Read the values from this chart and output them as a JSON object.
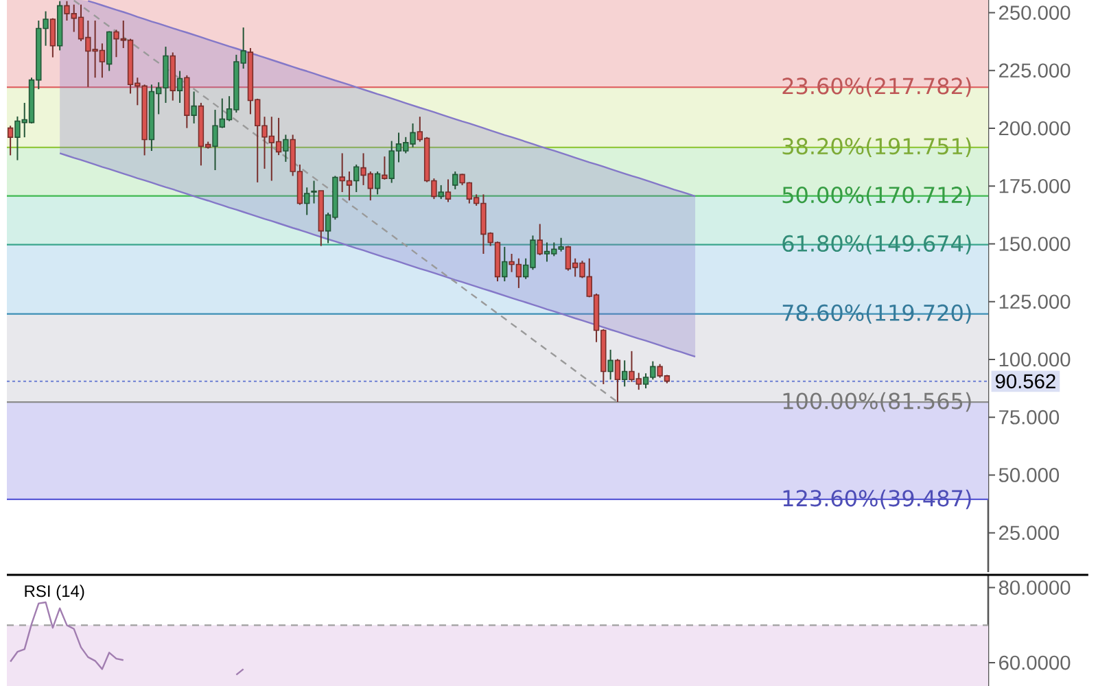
{
  "chart_data": [
    {
      "type": "candlestick",
      "categories": [
        null,
        null,
        null,
        null,
        null,
        null,
        null,
        null,
        null,
        null,
        null,
        null,
        null,
        null,
        null,
        null,
        null,
        null,
        null,
        null,
        null,
        null,
        null,
        null,
        null,
        null,
        null,
        null,
        null,
        null,
        null,
        null,
        null,
        null,
        null,
        null,
        null,
        null,
        null,
        null,
        null,
        null,
        null,
        null,
        null,
        null,
        null,
        null,
        null,
        null,
        null,
        null,
        null,
        null,
        null,
        null,
        null,
        null,
        null,
        null,
        null,
        null,
        null,
        null,
        null,
        null,
        null,
        null,
        null,
        null,
        null,
        null,
        null,
        null,
        null,
        null,
        null,
        null,
        null,
        null,
        null,
        null,
        null,
        null,
        null,
        null,
        null,
        null,
        null,
        null,
        null,
        null,
        null,
        null,
        null,
        null,
        null,
        null,
        null,
        null,
        null,
        null,
        null,
        null,
        null,
        null,
        null,
        null,
        null,
        null,
        null,
        null,
        null,
        null,
        null,
        null,
        null,
        null,
        null,
        null,
        null,
        null,
        null,
        null,
        null,
        null,
        null,
        null,
        null,
        null,
        null,
        null,
        null,
        null,
        null,
        null,
        null,
        null,
        null
      ],
      "ohlc": [
        [
          200.1,
          201.1,
          188.3,
          196.1
        ],
        [
          196.1,
          205.1,
          186.2,
          203.1
        ],
        [
          202.5,
          211.0,
          196.1,
          203.7
        ],
        [
          202.5,
          221.9,
          202.1,
          220.9
        ],
        [
          220.9,
          246.6,
          216.9,
          243.2
        ],
        [
          243.2,
          250.6,
          235.7,
          247.2
        ],
        [
          247.2,
          247.6,
          230.7,
          235.7
        ],
        [
          235.7,
          255.0,
          233.7,
          253.0
        ],
        [
          253.0,
          255.0,
          246.6,
          249.6
        ],
        [
          249.6,
          253.5,
          241.7,
          247.6
        ],
        [
          248.0,
          253.5,
          237.7,
          238.7
        ],
        [
          239.3,
          246.6,
          217.9,
          233.4
        ],
        [
          234.1,
          246.6,
          221.9,
          233.4
        ],
        [
          233.7,
          236.7,
          221.9,
          228.8
        ],
        [
          227.8,
          242.0,
          224.8,
          241.7
        ],
        [
          241.7,
          242.6,
          230.8,
          238.7
        ],
        [
          238.7,
          246.6,
          234.7,
          238.1
        ],
        [
          238.1,
          238.7,
          215.0,
          218.9
        ],
        [
          219.5,
          221.9,
          210.0,
          218.3
        ],
        [
          218.3,
          218.9,
          188.3,
          195.1
        ],
        [
          195.1,
          218.9,
          190.2,
          215.9
        ],
        [
          215.0,
          219.9,
          206.1,
          217.5
        ],
        [
          217.5,
          235.3,
          211.0,
          231.3
        ],
        [
          231.3,
          232.8,
          212.0,
          216.3
        ],
        [
          216.3,
          224.8,
          211.0,
          221.5
        ],
        [
          221.9,
          222.9,
          200.1,
          205.6
        ],
        [
          205.6,
          215.9,
          202.1,
          209.6
        ],
        [
          209.6,
          211.0,
          183.9,
          192.2
        ],
        [
          193.0,
          194.2,
          191.2,
          191.8
        ],
        [
          192.2,
          208.0,
          181.9,
          201.1
        ],
        [
          200.5,
          212.9,
          200.1,
          204.0
        ],
        [
          203.7,
          213.9,
          203.1,
          208.4
        ],
        [
          208.0,
          231.8,
          206.8,
          228.8
        ],
        [
          228.2,
          243.6,
          225.8,
          233.5
        ],
        [
          232.9,
          234.7,
          206.1,
          212.0
        ],
        [
          212.4,
          212.8,
          176.6,
          201.1
        ],
        [
          201.1,
          205.0,
          182.5,
          196.2
        ],
        [
          196.6,
          205.0,
          177.3,
          193.8
        ],
        [
          194.2,
          204.5,
          188.4,
          189.8
        ],
        [
          190.2,
          197.2,
          185.5,
          195.1
        ],
        [
          195.1,
          197.2,
          179.4,
          181.3
        ],
        [
          181.3,
          184.3,
          166.9,
          167.5
        ],
        [
          167.5,
          174.4,
          162.5,
          171.8
        ],
        [
          172.4,
          177.3,
          167.5,
          172.8
        ],
        [
          173.0,
          173.0,
          149.1,
          155.6
        ],
        [
          155.6,
          163.5,
          150.3,
          162.5
        ],
        [
          161.5,
          179.4,
          160.5,
          178.8
        ],
        [
          178.9,
          189.2,
          172.4,
          177.3
        ],
        [
          177.3,
          181.3,
          168.8,
          175.4
        ],
        [
          177.3,
          184.3,
          172.4,
          183.3
        ],
        [
          182.9,
          189.2,
          175.4,
          179.7
        ],
        [
          180.3,
          181.3,
          168.8,
          174.0
        ],
        [
          174.0,
          181.3,
          171.4,
          180.3
        ],
        [
          179.7,
          187.8,
          177.8,
          178.3
        ],
        [
          178.3,
          194.5,
          176.4,
          190.2
        ],
        [
          190.2,
          198.1,
          185.3,
          193.2
        ],
        [
          190.2,
          196.2,
          189.2,
          193.8
        ],
        [
          193.2,
          202.1,
          191.8,
          198.1
        ],
        [
          198.5,
          205.0,
          194.2,
          195.1
        ],
        [
          195.7,
          196.2,
          176.7,
          177.3
        ],
        [
          177.3,
          178.3,
          169.4,
          170.5
        ],
        [
          170.5,
          175.4,
          169.4,
          172.4
        ],
        [
          172.4,
          177.9,
          168.1,
          169.4
        ],
        [
          175.4,
          181.3,
          173.6,
          180.0
        ],
        [
          180.0,
          180.3,
          175.4,
          176.4
        ],
        [
          176.4,
          176.7,
          167.5,
          169.4
        ],
        [
          170.0,
          171.4,
          166.5,
          167.5
        ],
        [
          167.5,
          171.4,
          145.7,
          154.2
        ],
        [
          154.6,
          155.0,
          149.1,
          150.6
        ],
        [
          150.6,
          151.0,
          133.8,
          135.8
        ],
        [
          135.8,
          148.7,
          133.8,
          142.3
        ],
        [
          142.3,
          145.7,
          137.8,
          141.1
        ],
        [
          141.1,
          143.7,
          130.9,
          135.8
        ],
        [
          135.8,
          143.7,
          134.8,
          140.8
        ],
        [
          139.8,
          153.6,
          138.8,
          151.6
        ],
        [
          151.6,
          158.6,
          145.1,
          145.7
        ],
        [
          145.7,
          150.6,
          142.3,
          146.7
        ],
        [
          145.7,
          150.6,
          144.7,
          147.7
        ],
        [
          147.7,
          152.6,
          146.7,
          148.7
        ],
        [
          148.7,
          149.1,
          138.4,
          139.2
        ],
        [
          141.7,
          143.7,
          135.8,
          139.8
        ],
        [
          141.7,
          142.7,
          135.2,
          135.8
        ],
        [
          135.8,
          143.7,
          126.9,
          127.3
        ],
        [
          127.9,
          128.5,
          107.5,
          112.6
        ],
        [
          112.6,
          113.1,
          89.3,
          94.8
        ],
        [
          94.8,
          104.2,
          91.3,
          99.6
        ],
        [
          99.6,
          100.2,
          81.6,
          91.3
        ],
        [
          91.3,
          99.6,
          88.3,
          94.8
        ],
        [
          94.8,
          103.6,
          90.3,
          91.3
        ],
        [
          91.7,
          94.2,
          86.9,
          89.3
        ],
        [
          89.3,
          94.0,
          87.5,
          92.3
        ],
        [
          92.3,
          99.2,
          91.3,
          96.9
        ],
        [
          96.9,
          98.0,
          92.1,
          92.9
        ],
        [
          92.9,
          93.3,
          89.7,
          90.6
        ],
        null,
        null,
        null,
        null,
        null,
        null,
        null,
        null,
        null,
        null,
        null,
        null,
        null,
        null,
        null,
        null,
        null,
        null,
        null,
        null,
        null,
        null,
        null,
        null,
        null,
        null,
        null,
        null,
        null,
        null,
        null,
        null,
        null,
        null,
        null,
        null,
        null,
        null,
        null,
        null,
        null,
        null,
        null,
        null,
        null
      ],
      "colors": [
        "#d9534f",
        "#3d9b62",
        "#3d9b62",
        "#3d9b62",
        "#3d9b62",
        "#3d9b62",
        "#d9534f",
        "#3d9b62",
        "#d9534f",
        "#d9534f",
        "#d9534f",
        "#d9534f",
        "#d9534f",
        "#d9534f",
        "#3d9b62",
        "#d9534f",
        "#d9534f",
        "#d9534f",
        "#d9534f",
        "#d9534f",
        "#3d9b62",
        "#3d9b62",
        "#3d9b62",
        "#d9534f",
        "#3d9b62",
        "#d9534f",
        "#3d9b62",
        "#d9534f",
        "#d9534f",
        "#3d9b62",
        "#3d9b62",
        "#3d9b62",
        "#3d9b62",
        "#3d9b62",
        "#d9534f",
        "#d9534f",
        "#d9534f",
        "#d9534f",
        "#d9534f",
        "#3d9b62",
        "#d9534f",
        "#d9534f",
        "#3d9b62",
        "#3d9b62",
        "#d9534f",
        "#3d9b62",
        "#3d9b62",
        "#d9534f",
        "#d9534f",
        "#3d9b62",
        "#d9534f",
        "#d9534f",
        "#3d9b62",
        "#d9534f",
        "#3d9b62",
        "#3d9b62",
        "#3d9b62",
        "#3d9b62",
        "#d9534f",
        "#d9534f",
        "#d9534f",
        "#3d9b62",
        "#d9534f",
        "#3d9b62",
        "#d9534f",
        "#d9534f",
        "#d9534f",
        "#d9534f",
        "#d9534f",
        "#d9534f",
        "#3d9b62",
        "#d9534f",
        "#d9534f",
        "#3d9b62",
        "#3d9b62",
        "#d9534f",
        "#3d9b62",
        "#3d9b62",
        "#3d9b62",
        "#d9534f",
        "#d9534f",
        "#d9534f",
        "#d9534f",
        "#d9534f",
        "#d9534f",
        "#3d9b62",
        "#d9534f",
        "#3d9b62",
        "#d9534f",
        "#d9534f",
        "#3d9b62",
        "#3d9b62",
        "#d9534f",
        "#d9534f",
        null,
        null,
        null,
        null,
        null,
        null,
        null,
        null,
        null,
        null,
        null,
        null,
        null,
        null,
        null,
        null,
        null,
        null,
        null,
        null,
        null,
        null,
        null,
        null,
        null,
        null,
        null,
        null,
        null,
        null,
        null,
        null,
        null,
        null,
        null,
        null,
        null,
        null,
        null,
        null,
        null,
        null,
        null,
        null,
        null
      ],
      "ylim": [
        8,
        255.5
      ],
      "yticks": [
        {
          "value": 25,
          "label": "25.000"
        },
        {
          "value": 50,
          "label": "50.000"
        },
        {
          "value": 75,
          "label": "75.000"
        },
        {
          "value": 100,
          "label": "100.000"
        },
        {
          "value": 125,
          "label": "125.000"
        },
        {
          "value": 150,
          "label": "150.000"
        },
        {
          "value": 175,
          "label": "175.000"
        },
        {
          "value": 200,
          "label": "200.000"
        },
        {
          "value": 225,
          "label": "225.000"
        },
        {
          "value": 250,
          "label": "250.000"
        }
      ],
      "tick_labels": "y",
      "bands": [
        {
          "axis": "y",
          "from": 217.782,
          "to": 255.5,
          "color": "#f6d3d3"
        },
        {
          "axis": "y",
          "from": 191.751,
          "to": 217.782,
          "color": "#eef6d8"
        },
        {
          "axis": "y",
          "from": 170.712,
          "to": 191.751,
          "color": "#daf3da"
        },
        {
          "axis": "y",
          "from": 149.674,
          "to": 170.712,
          "color": "#d3f0e8"
        },
        {
          "axis": "y",
          "from": 119.72,
          "to": 149.674,
          "color": "#d5e9f5"
        },
        {
          "axis": "y",
          "from": 81.565,
          "to": 119.72,
          "color": "#e8e8ec"
        },
        {
          "axis": "y",
          "from": 39.487,
          "to": 81.565,
          "color": "#d9d7f6"
        }
      ],
      "ref_lines": [
        {
          "axis": "y",
          "value": 217.782,
          "label": "23.60%(217.782)",
          "color": "#e06666"
        },
        {
          "axis": "y",
          "value": 191.751,
          "label": "38.20%(191.751)",
          "color": "#93c83e"
        },
        {
          "axis": "y",
          "value": 170.712,
          "label": "50.00%(170.712)",
          "color": "#3fb950"
        },
        {
          "axis": "y",
          "value": 149.674,
          "label": "61.80%(149.674)",
          "color": "#3aa58c"
        },
        {
          "axis": "y",
          "value": 119.72,
          "label": "78.60%(119.720)",
          "color": "#3d8fb5"
        },
        {
          "axis": "y",
          "value": 81.565,
          "label": "100.00%(81.565)",
          "color": "#8c8c8c"
        },
        {
          "axis": "y",
          "value": 39.487,
          "label": "123.60%(39.487)",
          "color": "#5b5bd6"
        },
        {
          "axis": "y",
          "value": 90.562,
          "label": "90.562",
          "color": "#7b8cd6",
          "line_style": "dotted"
        }
      ],
      "series": [
        {
          "type": "line",
          "color": "#8478c8",
          "values": [
            null,
            null,
            null,
            null,
            null,
            null,
            null,
            189.2,
            188.2,
            187.2,
            186.3,
            185.3,
            184.3,
            183.3,
            182.4,
            181.4,
            180.4,
            179.4,
            178.4,
            177.5,
            176.5,
            175.5,
            174.5,
            173.6,
            172.6,
            171.6,
            170.6,
            169.6,
            168.7,
            167.7,
            166.7,
            165.7,
            164.8,
            163.8,
            162.8,
            161.8,
            160.8,
            159.9,
            158.9,
            157.9,
            156.9,
            156.0,
            155.0,
            154.0,
            153.0,
            152.0,
            151.1,
            150.1,
            149.1,
            148.1,
            147.2,
            146.2,
            145.2,
            144.2,
            143.3,
            142.3,
            141.3,
            140.3,
            139.3,
            138.4,
            137.4,
            136.4,
            135.4,
            134.4,
            133.5,
            132.5,
            131.5,
            130.5,
            129.6,
            128.6,
            127.6,
            126.6,
            125.6,
            124.7,
            123.7,
            122.7,
            121.7,
            120.8,
            119.8,
            118.8,
            117.8,
            116.9,
            115.9,
            114.9,
            113.9,
            112.9,
            112.0,
            111.0,
            110.0,
            109.0,
            108.1,
            107.1,
            106.1,
            105.1,
            104.1,
            103.2,
            102.2,
            101.2,
            null,
            null,
            null,
            null,
            null,
            null,
            null,
            null,
            null,
            null,
            null,
            null,
            null,
            null,
            null,
            null,
            null,
            null,
            null,
            null,
            null,
            null,
            null,
            null,
            null,
            null,
            null,
            null,
            null,
            null,
            null,
            null,
            null,
            null,
            null,
            null,
            null,
            null,
            null,
            null,
            null
          ],
          "lower": [
            null,
            null,
            null,
            null,
            null,
            null,
            null,
            189.2,
            188.2,
            187.2,
            186.3,
            185.3,
            184.3,
            183.3,
            182.4,
            181.4,
            180.4,
            179.4,
            178.4,
            177.5,
            176.5,
            175.5,
            174.5,
            173.6,
            172.6,
            171.6,
            170.6,
            169.6,
            168.7,
            167.7,
            166.7,
            165.7,
            164.8,
            163.8,
            162.8,
            161.8,
            160.8,
            159.9,
            158.9,
            157.9,
            156.9,
            156.0,
            155.0,
            154.0,
            153.0,
            152.0,
            151.1,
            150.1,
            149.1,
            148.1,
            147.2,
            146.2,
            145.2,
            144.2,
            143.3,
            142.3,
            141.3,
            140.3,
            139.3,
            138.4,
            137.4,
            136.4,
            135.4,
            134.4,
            133.5,
            132.5,
            131.5,
            130.5,
            129.6,
            128.6,
            127.6,
            126.6,
            125.6,
            124.7,
            123.7,
            122.7,
            121.7,
            120.8,
            119.8,
            118.8,
            117.8,
            116.9,
            115.9,
            114.9,
            113.9,
            112.9,
            112.0,
            111.0,
            110.0,
            109.0,
            108.1,
            107.1,
            106.1,
            105.1,
            104.1,
            103.2,
            102.2,
            101.2,
            null,
            null,
            null,
            null,
            null,
            null,
            null,
            null,
            null,
            null,
            null,
            null,
            null,
            null,
            null,
            null,
            null,
            null,
            null,
            null,
            null,
            null,
            null,
            null,
            null,
            null,
            null,
            null,
            null,
            null,
            null,
            null,
            null,
            null,
            null,
            null,
            null,
            null,
            null,
            null,
            null
          ],
          "upper": [
            null,
            null,
            null,
            null,
            null,
            null,
            null,
            255.5,
            255.5,
            255.5,
            255.5,
            255.1,
            254.2,
            253.2,
            252.2,
            251.2,
            250.3,
            249.3,
            248.2,
            247.2,
            246.2,
            245.3,
            244.3,
            243.3,
            242.3,
            241.4,
            240.4,
            239.4,
            238.4,
            237.4,
            236.4,
            235.4,
            234.5,
            233.5,
            232.5,
            231.6,
            230.6,
            229.6,
            228.6,
            227.6,
            226.6,
            225.6,
            224.7,
            223.7,
            222.7,
            221.7,
            220.7,
            219.8,
            218.8,
            217.8,
            216.8,
            215.8,
            214.8,
            213.9,
            212.9,
            211.9,
            210.9,
            209.9,
            208.9,
            208.0,
            207.0,
            206.0,
            205.0,
            204.0,
            203.0,
            202.1,
            201.1,
            200.1,
            199.1,
            198.1,
            197.1,
            196.2,
            195.2,
            194.2,
            193.2,
            192.2,
            191.2,
            190.3,
            189.3,
            188.3,
            187.3,
            186.3,
            185.3,
            184.4,
            183.4,
            182.4,
            181.4,
            180.4,
            179.4,
            178.5,
            177.5,
            176.5,
            175.5,
            174.5,
            173.5,
            172.6,
            171.6,
            170.6,
            null,
            null,
            null,
            null,
            null,
            null,
            null,
            null,
            null,
            null,
            null,
            null,
            null,
            null,
            null,
            null,
            null,
            null,
            null,
            null,
            null,
            null,
            null,
            null,
            null,
            null,
            null,
            null,
            null,
            null,
            null,
            null,
            null,
            null,
            null,
            null,
            null,
            null,
            null,
            null,
            null
          ]
        },
        {
          "type": "line",
          "color": "#8478c8",
          "values": [
            null,
            null,
            null,
            null,
            null,
            null,
            null,
            null,
            null,
            null,
            null,
            255.1,
            254.2,
            253.2,
            252.2,
            251.2,
            250.3,
            249.3,
            248.2,
            247.2,
            246.2,
            245.3,
            244.3,
            243.3,
            242.3,
            241.4,
            240.4,
            239.4,
            238.4,
            237.4,
            236.4,
            235.4,
            234.5,
            233.5,
            232.5,
            231.6,
            230.6,
            229.6,
            228.6,
            227.6,
            226.6,
            225.6,
            224.7,
            223.7,
            222.7,
            221.7,
            220.7,
            219.8,
            218.8,
            217.8,
            216.8,
            215.8,
            214.8,
            213.9,
            212.9,
            211.9,
            210.9,
            209.9,
            208.9,
            208.0,
            207.0,
            206.0,
            205.0,
            204.0,
            203.0,
            202.1,
            201.1,
            200.1,
            199.1,
            198.1,
            197.1,
            196.2,
            195.2,
            194.2,
            193.2,
            192.2,
            191.2,
            190.3,
            189.3,
            188.3,
            187.3,
            186.3,
            185.3,
            184.4,
            183.4,
            182.4,
            181.4,
            180.4,
            179.4,
            178.5,
            177.5,
            176.5,
            175.5,
            174.5,
            173.5,
            172.6,
            171.6,
            170.6,
            null,
            null,
            null,
            null,
            null,
            null,
            null,
            null,
            null,
            null,
            null,
            null,
            null,
            null,
            null,
            null,
            null,
            null,
            null,
            null,
            null,
            null,
            null,
            null,
            null,
            null,
            null,
            null,
            null,
            null,
            null,
            null,
            null,
            null,
            null,
            null,
            null,
            null,
            null,
            null,
            null
          ]
        },
        {
          "type": "line",
          "color": "#9a9a9a",
          "line_style": "dashed",
          "values": [
            null,
            null,
            null,
            null,
            null,
            null,
            null,
            null,
            null,
            255.3,
            253.1,
            250.8,
            248.6,
            246.3,
            244.1,
            241.8,
            239.5,
            237.3,
            235.0,
            232.8,
            230.5,
            228.3,
            226.0,
            223.7,
            221.5,
            219.2,
            217.0,
            214.7,
            212.5,
            210.2,
            207.9,
            205.7,
            203.4,
            201.2,
            198.9,
            196.6,
            194.4,
            192.1,
            189.9,
            187.6,
            185.4,
            183.1,
            180.8,
            178.6,
            176.3,
            174.1,
            171.8,
            169.6,
            167.3,
            165.1,
            162.8,
            160.5,
            158.3,
            156.0,
            153.8,
            151.5,
            149.3,
            147.0,
            144.7,
            142.5,
            140.2,
            138.0,
            135.7,
            133.5,
            131.2,
            128.9,
            126.7,
            124.4,
            122.2,
            119.9,
            117.7,
            115.4,
            113.2,
            110.9,
            108.6,
            106.4,
            104.1,
            101.9,
            99.6,
            97.4,
            95.1,
            92.8,
            90.6,
            88.3,
            86.1,
            83.8,
            81.6,
            null,
            null,
            null,
            null,
            null,
            null,
            null,
            null,
            null,
            null,
            null,
            null,
            null,
            null,
            null,
            null,
            null,
            null,
            null,
            null,
            null,
            null,
            null,
            null,
            null,
            null,
            null,
            null,
            null,
            null,
            null,
            null,
            null,
            null,
            null,
            null,
            null,
            null,
            null,
            null,
            null,
            null,
            null,
            null,
            null,
            null,
            null,
            null,
            null,
            null,
            null,
            null
          ]
        }
      ]
    },
    {
      "type": "line",
      "title": "RSI (14)",
      "categories": [
        null,
        null,
        null,
        null,
        null,
        null,
        null,
        null,
        null,
        null,
        null,
        null,
        null,
        null,
        null,
        null,
        null,
        null,
        null,
        null,
        null,
        null,
        null,
        null,
        null,
        null,
        null,
        null,
        null,
        null,
        null,
        null,
        null,
        null,
        null,
        null,
        null,
        null,
        null,
        null,
        null,
        null,
        null,
        null,
        null,
        null,
        null,
        null,
        null,
        null,
        null,
        null,
        null,
        null,
        null,
        null,
        null,
        null,
        null,
        null,
        null,
        null,
        null,
        null,
        null,
        null,
        null,
        null,
        null,
        null,
        null,
        null,
        null,
        null,
        null,
        null,
        null,
        null,
        null,
        null,
        null,
        null,
        null,
        null,
        null,
        null,
        null,
        null,
        null,
        null,
        null,
        null,
        null,
        null,
        null,
        null,
        null,
        null,
        null,
        null,
        null,
        null,
        null,
        null,
        null,
        null,
        null,
        null,
        null,
        null,
        null,
        null,
        null,
        null,
        null,
        null,
        null,
        null,
        null,
        null,
        null,
        null,
        null,
        null,
        null,
        null,
        null,
        null,
        null,
        null,
        null,
        null,
        null,
        null,
        null,
        null,
        null,
        null,
        null
      ],
      "ylim": [
        53.8,
        83.4
      ],
      "yticks": [
        {
          "value": 60,
          "label": "60.0000"
        },
        {
          "value": 80,
          "label": "80.0000"
        }
      ],
      "tick_labels": "y",
      "bands": [
        {
          "axis": "y",
          "from": 53.8,
          "to": 70,
          "color": "#f2e4f4"
        }
      ],
      "ref_lines": [
        {
          "axis": "y",
          "value": 70,
          "color": "#a0a0a0",
          "line_style": "dashed"
        }
      ],
      "series": [
        {
          "color": "#a17db0",
          "values": [
            60.3,
            62.9,
            63.6,
            70.3,
            75.8,
            76.1,
            69.3,
            74.5,
            70.0,
            69.0,
            64.1,
            61.5,
            60.5,
            58.3,
            62.7,
            61.1,
            60.7,
            null,
            null,
            null,
            null,
            null,
            null,
            null,
            null,
            null,
            null,
            null,
            null,
            null,
            null,
            null,
            56.8,
            58.3,
            null,
            null,
            null,
            null,
            null,
            null,
            null,
            null,
            null,
            null,
            null,
            null,
            null,
            null,
            null,
            null,
            null,
            null,
            null,
            null,
            null,
            null,
            null,
            null,
            null,
            null,
            null,
            null,
            null,
            null,
            null,
            null,
            null,
            null,
            null,
            null,
            null,
            null,
            null,
            null,
            null,
            null,
            null,
            null,
            null,
            null,
            null,
            null,
            null,
            null,
            null,
            null,
            null,
            null,
            null,
            null,
            null,
            null,
            null,
            null,
            null,
            null,
            null,
            null,
            null,
            null,
            null,
            null,
            null,
            null,
            null,
            null,
            null,
            null,
            null,
            null,
            null,
            null,
            null,
            null,
            null,
            null,
            null,
            null,
            null,
            null,
            null,
            null,
            null,
            null,
            null,
            null,
            null,
            null,
            null,
            null,
            null,
            null,
            null,
            null,
            null,
            null,
            null,
            null,
            null
          ]
        }
      ]
    }
  ]
}
